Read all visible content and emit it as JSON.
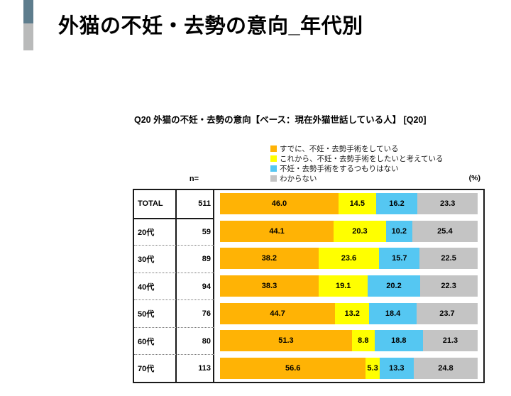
{
  "page": {
    "title": "外猫の不妊・去勢の意向_年代別",
    "subtitle": "Q20 外猫の不妊・去勢の意向【ベース：現在外猫世話している人】 [Q20]",
    "n_label": "n=",
    "unit_label": "(%)"
  },
  "colors": {
    "accent_top": "#5E7D8D",
    "accent_bottom": "#B9BABA",
    "table_border": "#1a1a1a"
  },
  "chart_data": {
    "type": "bar",
    "stacked": true,
    "orientation": "horizontal",
    "unit": "%",
    "xlim": [
      0,
      100
    ],
    "grid": false,
    "legend_position": "top",
    "title": "Q20 外猫の不妊・去勢の意向【ベース：現在外猫世話している人】 [Q20]",
    "categories": [
      "TOTAL",
      "20代",
      "30代",
      "40代",
      "50代",
      "60代",
      "70代"
    ],
    "n_values": [
      511,
      59,
      89,
      94,
      76,
      80,
      113
    ],
    "series": [
      {
        "name": "すでに、不妊・去勢手術をしている",
        "color": "#FFB305",
        "values": [
          46.0,
          44.1,
          38.2,
          38.3,
          44.7,
          51.3,
          56.6
        ]
      },
      {
        "name": "これから、不妊・去勢手術をしたいと考えている",
        "color": "#FFFF00",
        "values": [
          14.5,
          20.3,
          23.6,
          19.1,
          13.2,
          8.8,
          5.3
        ]
      },
      {
        "name": "不妊・去勢手術をするつもりはない",
        "color": "#55C7F2",
        "values": [
          16.2,
          10.2,
          15.7,
          20.2,
          18.4,
          18.8,
          13.3
        ]
      },
      {
        "name": "わからない",
        "color": "#C4C4C4",
        "values": [
          23.3,
          25.4,
          22.5,
          22.3,
          23.7,
          21.3,
          24.8
        ]
      }
    ]
  }
}
